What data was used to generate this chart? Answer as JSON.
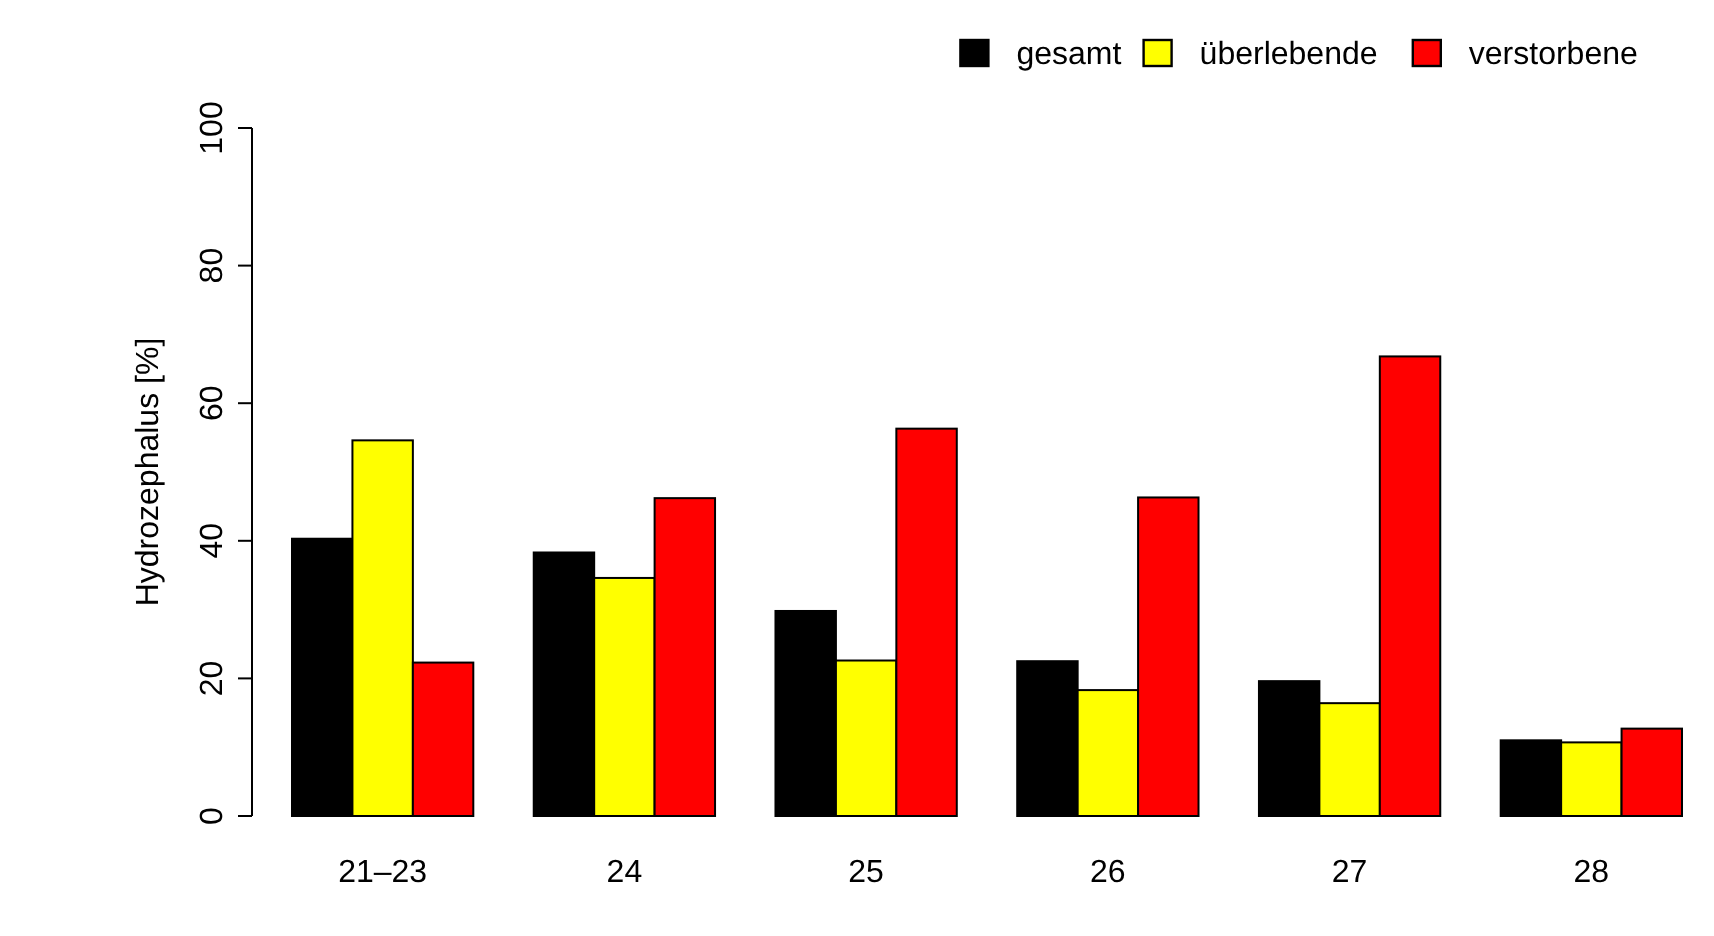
{
  "chart_data": {
    "type": "bar",
    "ylabel": "Hydrozephalus [%]",
    "categories": [
      "21–23",
      "24",
      "25",
      "26",
      "27",
      "28"
    ],
    "series": [
      {
        "name": "gesamt",
        "color": "#000000",
        "values": [
          40.3,
          38.3,
          29.8,
          22.5,
          19.6,
          11.0
        ]
      },
      {
        "name": "überlebende",
        "color": "#ffff00",
        "values": [
          54.6,
          34.6,
          22.6,
          18.3,
          16.4,
          10.7
        ]
      },
      {
        "name": "verstorbene",
        "color": "#ff0000",
        "values": [
          22.3,
          46.2,
          56.3,
          46.3,
          66.8,
          12.7
        ]
      }
    ],
    "ylim": [
      0,
      100
    ],
    "yticks": [
      0,
      20,
      40,
      60,
      80,
      100
    ],
    "legend": "top",
    "grid": false
  }
}
